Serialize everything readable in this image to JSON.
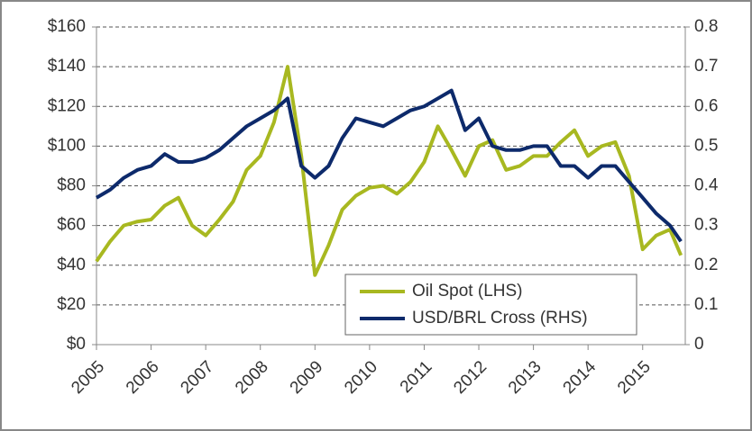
{
  "chart_data": {
    "type": "line",
    "x": [
      2005,
      2005.25,
      2005.5,
      2005.75,
      2006,
      2006.25,
      2006.5,
      2006.75,
      2007,
      2007.25,
      2007.5,
      2007.75,
      2008,
      2008.25,
      2008.5,
      2008.75,
      2009,
      2009.25,
      2009.5,
      2009.75,
      2010,
      2010.25,
      2010.5,
      2010.75,
      2011,
      2011.25,
      2011.5,
      2011.75,
      2012,
      2012.25,
      2012.5,
      2012.75,
      2013,
      2013.25,
      2013.5,
      2013.75,
      2014,
      2014.25,
      2014.5,
      2014.75,
      2015,
      2015.25,
      2015.5,
      2015.7
    ],
    "series": [
      {
        "name": "Oil Spot (LHS)",
        "color": "#a8b820",
        "values": [
          42,
          52,
          60,
          62,
          63,
          70,
          74,
          60,
          55,
          63,
          72,
          88,
          95,
          112,
          140,
          95,
          35,
          50,
          68,
          75,
          79,
          80,
          76,
          82,
          92,
          110,
          98,
          85,
          100,
          103,
          88,
          90,
          95,
          95,
          102,
          108,
          95,
          100,
          102,
          85,
          48,
          55,
          58,
          45
        ]
      },
      {
        "name": "USD/BRL Cross (RHS)",
        "color": "#0d2a6b",
        "axis": "y2",
        "values": [
          0.37,
          0.39,
          0.42,
          0.44,
          0.45,
          0.48,
          0.46,
          0.46,
          0.47,
          0.49,
          0.52,
          0.55,
          0.57,
          0.59,
          0.62,
          0.45,
          0.42,
          0.45,
          0.52,
          0.57,
          0.56,
          0.55,
          0.57,
          0.59,
          0.6,
          0.62,
          0.64,
          0.54,
          0.57,
          0.5,
          0.49,
          0.49,
          0.5,
          0.5,
          0.45,
          0.45,
          0.42,
          0.45,
          0.45,
          0.41,
          0.37,
          0.33,
          0.3,
          0.26
        ]
      }
    ],
    "xlim": [
      2005,
      2015.78
    ],
    "xticks": [
      2005,
      2006,
      2007,
      2008,
      2009,
      2010,
      2011,
      2012,
      2013,
      2014,
      2015
    ],
    "ylim": [
      0,
      160
    ],
    "yticks": [
      {
        "value": 0,
        "label": "$0"
      },
      {
        "value": 20,
        "label": "$20"
      },
      {
        "value": 40,
        "label": "$40"
      },
      {
        "value": 60,
        "label": "$60"
      },
      {
        "value": 80,
        "label": "$80"
      },
      {
        "value": 100,
        "label": "$100"
      },
      {
        "value": 120,
        "label": "$120"
      },
      {
        "value": 140,
        "label": "$140"
      },
      {
        "value": 160,
        "label": "$160"
      }
    ],
    "y2lim": [
      0,
      0.8
    ],
    "y2ticks": [
      0,
      0.1,
      0.2,
      0.3,
      0.4,
      0.5,
      0.6,
      0.7,
      0.8
    ],
    "grid": true,
    "legend": "lower right"
  }
}
